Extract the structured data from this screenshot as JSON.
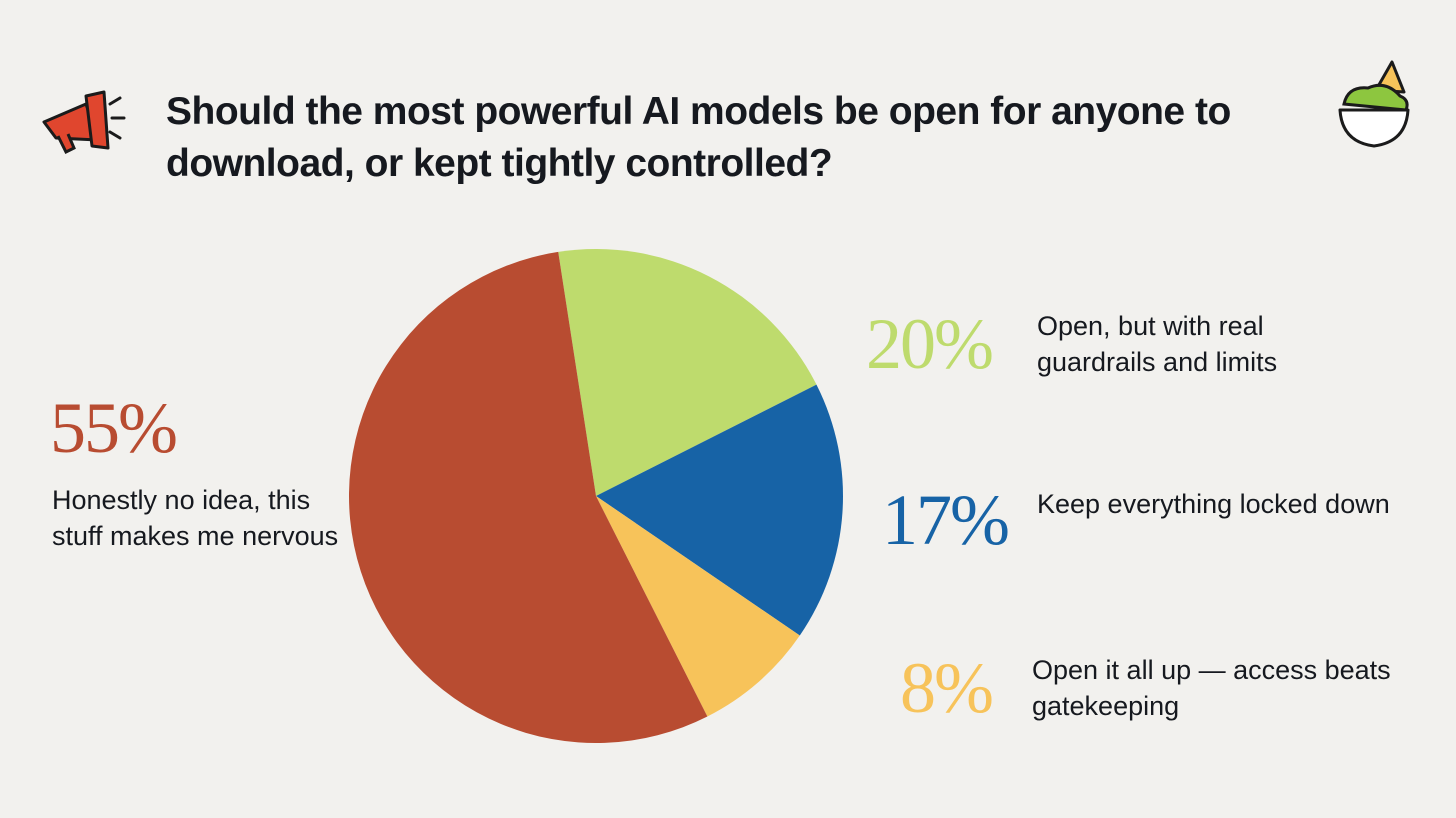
{
  "chart_data": {
    "type": "pie",
    "title": "Should the most powerful AI models be open for anyone to download, or kept tightly controlled?",
    "categories": [
      "Open, but with real guardrails and limits",
      "Keep everything locked down",
      "Open it all up — access beats gatekeeping",
      "Honestly no idea, this stuff makes me nervous"
    ],
    "values": [
      20,
      17,
      8,
      55
    ],
    "value_labels": [
      "20%",
      "17%",
      "8%",
      "55%"
    ],
    "colors": [
      "#bedb6d",
      "#1763a6",
      "#f7c35a",
      "#b84c31"
    ]
  }
}
